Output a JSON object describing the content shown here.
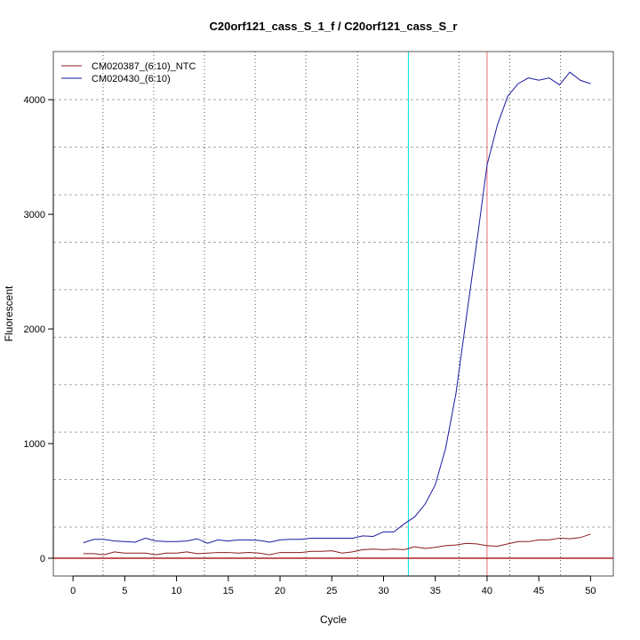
{
  "chart_data": {
    "type": "line",
    "title": "C20orf121_cass_S_1_f / C20orf121_cass_S_r",
    "xlabel": "Cycle",
    "ylabel": "Fluorescent",
    "xlim": [
      -1.9,
      52.2
    ],
    "ylim": [
      -155,
      4420
    ],
    "xticks": [
      0,
      5,
      10,
      15,
      20,
      25,
      30,
      35,
      40,
      45,
      50
    ],
    "yticks": [
      0,
      1000,
      2000,
      3000,
      4000
    ],
    "grid_x": [
      2.9,
      7.8,
      12.7,
      17.6,
      22.5,
      27.5,
      32.4,
      37.3,
      42.2,
      47.1
    ],
    "grid_y": [
      271,
      686,
      1100,
      1514,
      1928,
      2343,
      2757,
      3171,
      3586,
      4000
    ],
    "legend_position": "top-left",
    "reference_lines": {
      "threshold_cycle": 32.4,
      "cutoff_cycle": 40,
      "baseline": 0
    },
    "x": [
      1,
      2,
      3,
      4,
      5,
      6,
      7,
      8,
      9,
      10,
      11,
      12,
      13,
      14,
      15,
      16,
      17,
      18,
      19,
      20,
      21,
      22,
      23,
      24,
      25,
      26,
      27,
      28,
      29,
      30,
      31,
      32,
      33,
      34,
      35,
      36,
      37,
      38,
      39,
      40,
      41,
      42,
      43,
      44,
      45,
      46,
      47,
      48,
      49,
      50
    ],
    "series": [
      {
        "name": "CM020387_(6:10)_NTC",
        "color": "#8b1a1a",
        "values": [
          40,
          40,
          30,
          55,
          45,
          45,
          45,
          30,
          45,
          45,
          55,
          40,
          45,
          50,
          50,
          45,
          50,
          45,
          30,
          50,
          50,
          50,
          60,
          60,
          65,
          45,
          55,
          75,
          80,
          75,
          80,
          75,
          100,
          85,
          95,
          110,
          115,
          130,
          125,
          110,
          105,
          125,
          145,
          145,
          160,
          160,
          175,
          170,
          180,
          210
        ]
      },
      {
        "name": "CM020430_(6:10)",
        "color": "#1a1aa0",
        "values": [
          135,
          165,
          165,
          150,
          145,
          140,
          175,
          150,
          145,
          145,
          150,
          170,
          130,
          160,
          150,
          160,
          160,
          155,
          140,
          160,
          165,
          165,
          175,
          175,
          175,
          175,
          175,
          195,
          190,
          230,
          230,
          300,
          360,
          470,
          640,
          960,
          1440,
          2100,
          2750,
          3430,
          3780,
          4030,
          4140,
          4190,
          4170,
          4190,
          4130,
          4240,
          4170,
          4140
        ]
      }
    ]
  }
}
